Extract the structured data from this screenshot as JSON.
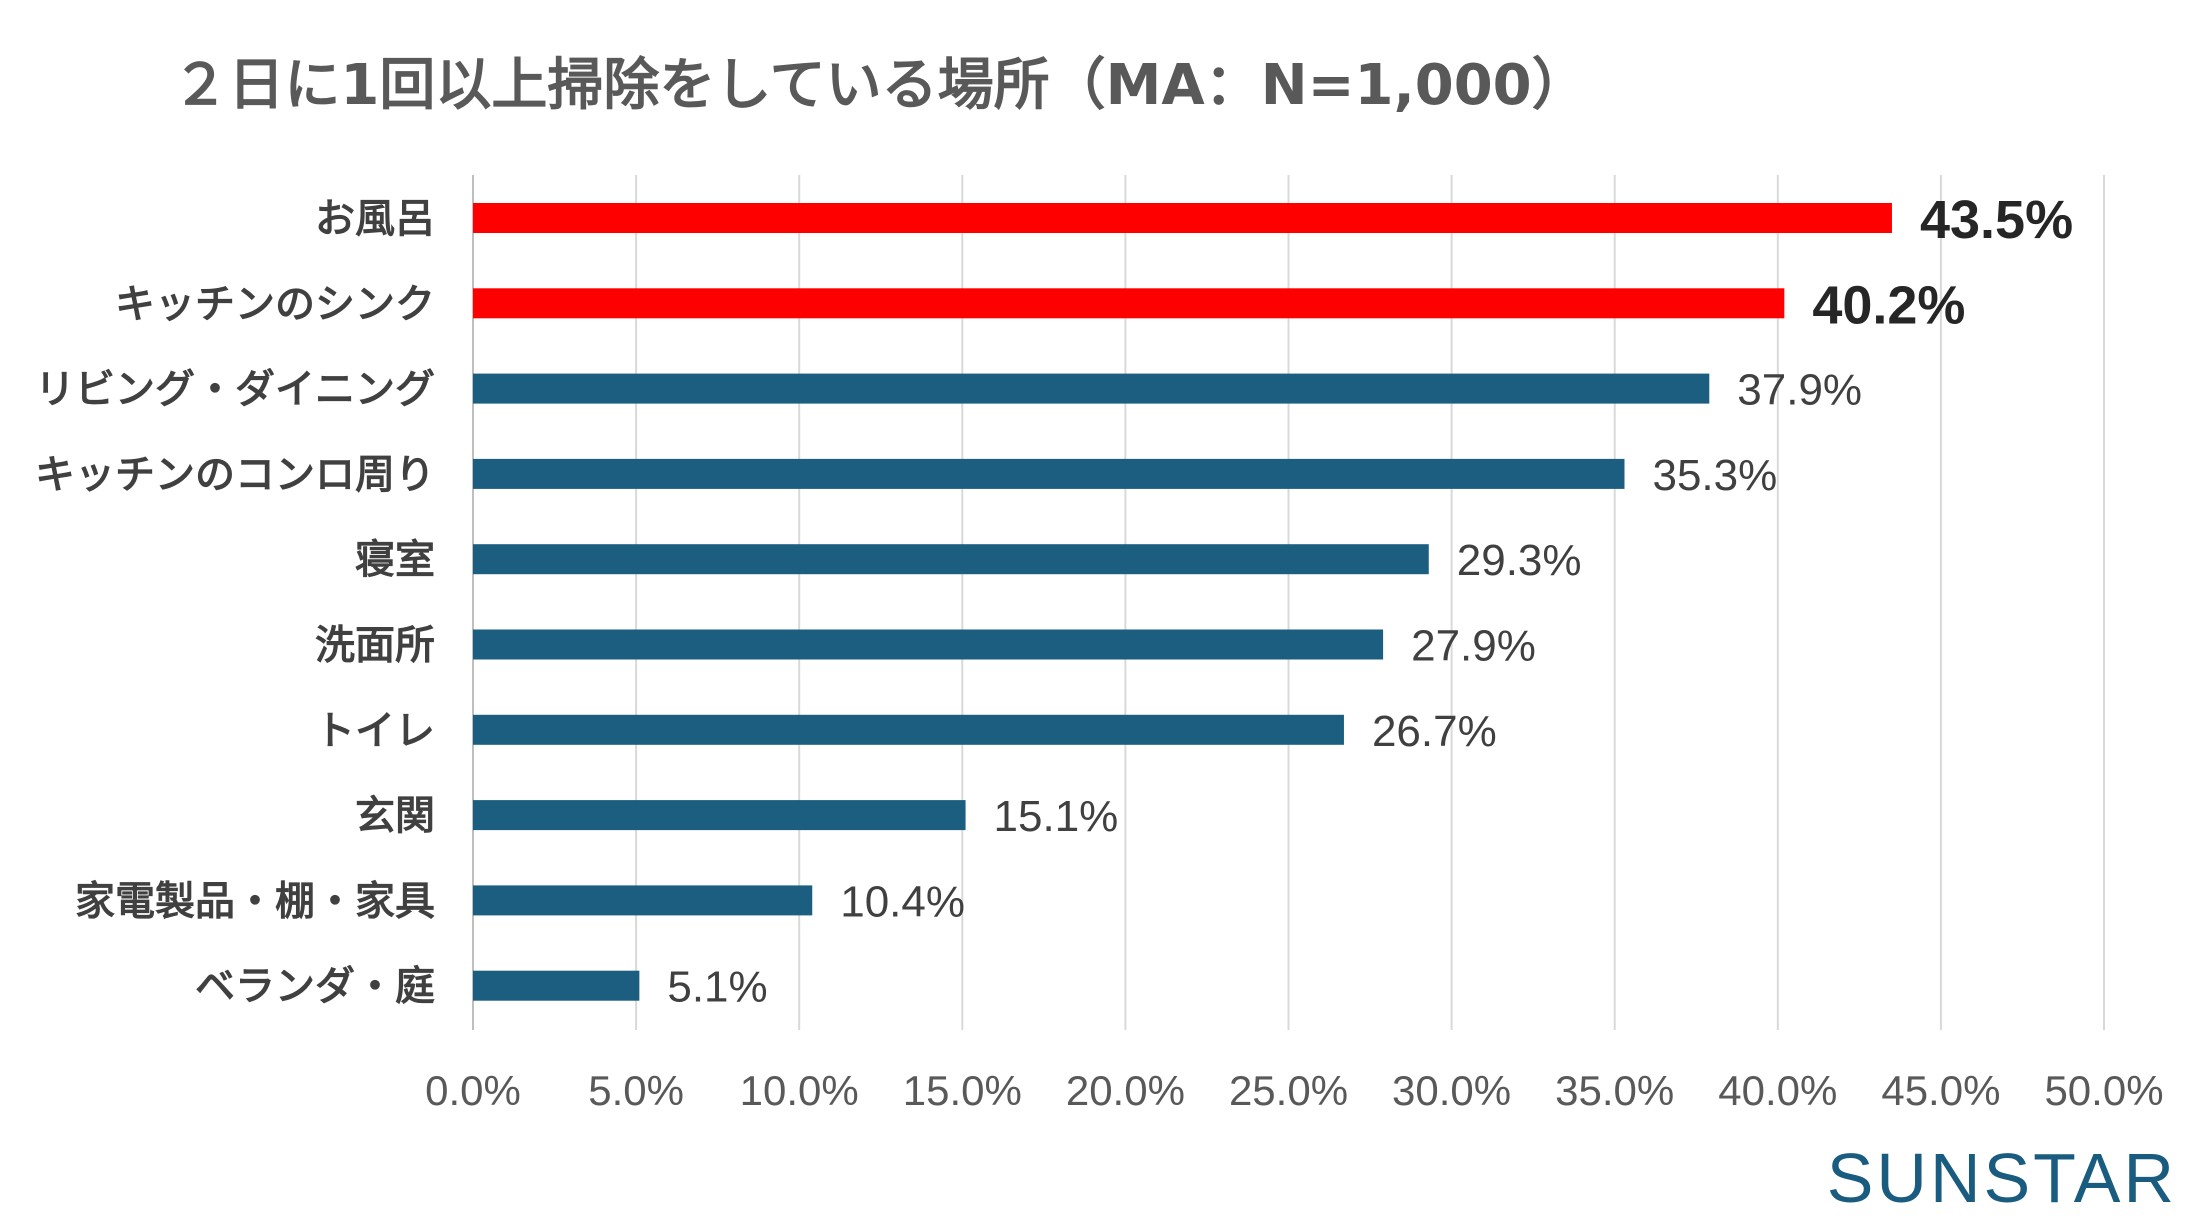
{
  "chart_data": {
    "type": "bar",
    "orientation": "horizontal",
    "title": "２日に1回以上掃除をしている場所（MA：N=1,000）",
    "categories": [
      "お風呂",
      "キッチンのシンク",
      "リビング・ダイニング",
      "キッチンのコンロ周り",
      "寝室",
      "洗面所",
      "トイレ",
      "玄関",
      "家電製品・棚・家具",
      "ベランダ・庭"
    ],
    "values": [
      43.5,
      40.2,
      37.9,
      35.3,
      29.3,
      27.9,
      26.7,
      15.1,
      10.4,
      5.1
    ],
    "value_labels": [
      "43.5%",
      "40.2%",
      "37.9%",
      "35.3%",
      "29.3%",
      "27.9%",
      "26.7%",
      "15.1%",
      "10.4%",
      "5.1%"
    ],
    "highlighted": [
      true,
      true,
      false,
      false,
      false,
      false,
      false,
      false,
      false,
      false
    ],
    "xlim": [
      0,
      50
    ],
    "xticks": [
      0,
      5,
      10,
      15,
      20,
      25,
      30,
      35,
      40,
      45,
      50
    ],
    "xtick_labels": [
      "0.0%",
      "5.0%",
      "10.0%",
      "15.0%",
      "20.0%",
      "25.0%",
      "30.0%",
      "35.0%",
      "40.0%",
      "45.0%",
      "50.0%"
    ],
    "xlabel": "",
    "ylabel": "",
    "grid": true,
    "colors": {
      "highlight": "#ff0000",
      "default": "#1b5e80",
      "grid": "#d9d9d9"
    }
  },
  "brand": {
    "logo_text": "SUNSTAR",
    "color": "#1a5c7f"
  }
}
